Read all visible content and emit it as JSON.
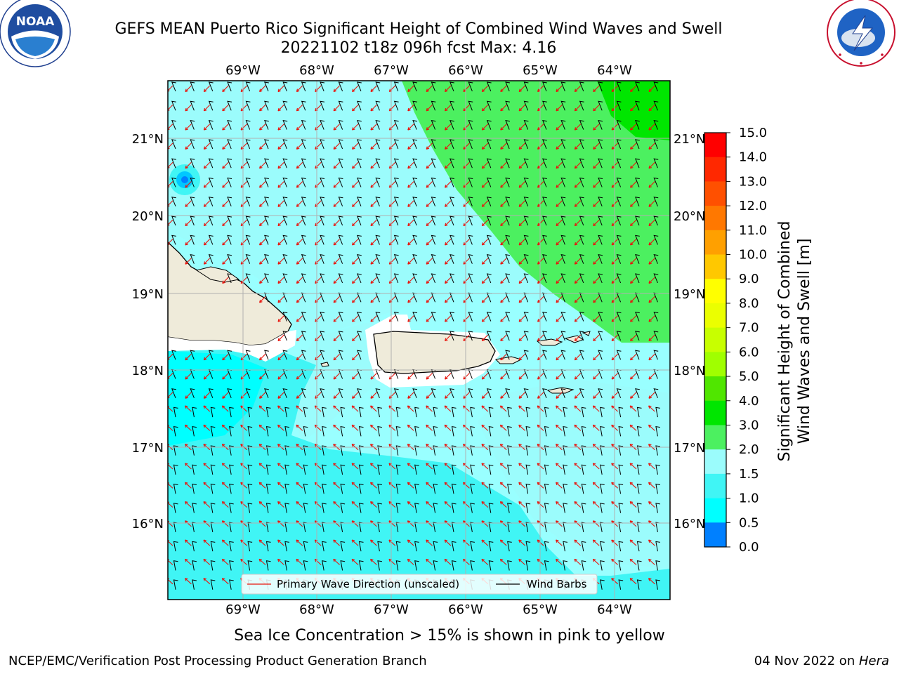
{
  "title": {
    "line1": "GEFS MEAN Puerto Rico Significant Height of Combined Wind Waves and Swell",
    "line2": "20221102 t18z 096h fcst   Max: 4.16"
  },
  "logos": {
    "left": {
      "name": "NOAA",
      "text": "NOAA",
      "ring_text": "NATIONAL OCEANIC AND ATMOSPHERIC ADMINISTRATION · U.S. DEPARTMENT OF COMMERCE"
    },
    "right": {
      "name": "National Weather Service",
      "ring_text": "NATIONAL WEATHER SERVICE"
    }
  },
  "map": {
    "lon_labels": [
      "69°W",
      "68°W",
      "67°W",
      "66°W",
      "65°W",
      "64°W"
    ],
    "lat_labels": [
      "21°N",
      "20°N",
      "19°N",
      "18°N",
      "17°N",
      "16°N"
    ],
    "lon_range": [
      -70.0,
      -63.3
    ],
    "lat_range": [
      15.0,
      21.75
    ],
    "legend": {
      "wave_label": "Primary Wave Direction (unscaled)",
      "barb_label": "Wind Barbs",
      "wave_color": "#e8140c",
      "barb_color": "#000000"
    },
    "land_color": "#efebda",
    "ocean_base_color": "#99ffff",
    "regions": [
      {
        "name": "deep-green-patch",
        "height_class": "4.0–5.0",
        "color": "#00e600"
      },
      {
        "name": "green-region-northeast",
        "height_class": "3.0–4.0",
        "color": "#4cf060"
      },
      {
        "name": "light-cyan-north-south",
        "height_class": "2.0–3.0",
        "color": "#9bfcfc"
      },
      {
        "name": "cyan-band-center",
        "height_class": "1.5–2.0",
        "color": "#40f5f5"
      },
      {
        "name": "bright-cyan-southwest",
        "height_class": "1.0–1.5",
        "color": "#00ffff"
      }
    ]
  },
  "colorbar": {
    "label_line1": "Significant Height of Combined",
    "label_line2": "Wind Waves and Swell [m]",
    "ticks": [
      "15.0",
      "14.0",
      "13.0",
      "12.0",
      "11.0",
      "10.0",
      "9.0",
      "8.0",
      "7.0",
      "6.0",
      "5.0",
      "4.0",
      "3.0",
      "2.0",
      "1.5",
      "1.0",
      "0.5",
      "0.0"
    ],
    "colors": [
      "#ff0000",
      "#ff2800",
      "#ff5000",
      "#ff7800",
      "#ffa000",
      "#ffc800",
      "#ffff00",
      "#ebff00",
      "#c8ff00",
      "#a0ff00",
      "#50e600",
      "#00e600",
      "#4cf060",
      "#9bfcfc",
      "#40f5f5",
      "#00ffff",
      "#0080ff",
      "#0000ff"
    ]
  },
  "note": "Sea Ice Concentration > 15% is shown in pink to yellow",
  "footer": {
    "left": "NCEP/EMC/Verification Post Processing Product Generation Branch",
    "right_prefix": "04 Nov 2022 on ",
    "right_host": "Hera"
  }
}
